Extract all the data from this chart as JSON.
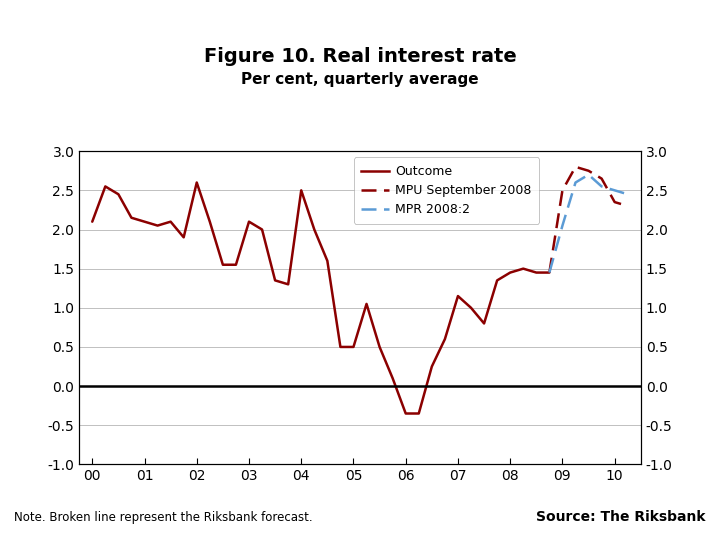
{
  "title": "Figure 10. Real interest rate",
  "subtitle": "Per cent, quarterly average",
  "note": "Note. Broken line represent the Riksbank forecast.",
  "source": "Source: The Riksbank",
  "outcome_x": [
    2000.0,
    2000.25,
    2000.5,
    2000.75,
    2001.0,
    2001.25,
    2001.5,
    2001.75,
    2002.0,
    2002.25,
    2002.5,
    2002.75,
    2003.0,
    2003.25,
    2003.5,
    2003.75,
    2004.0,
    2004.25,
    2004.5,
    2004.75,
    2005.0,
    2005.25,
    2005.5,
    2005.75,
    2006.0,
    2006.25,
    2006.5,
    2006.75,
    2007.0,
    2007.25,
    2007.5,
    2007.75,
    2008.0,
    2008.25,
    2008.5,
    2008.75
  ],
  "outcome_y": [
    2.1,
    2.55,
    2.45,
    2.15,
    2.1,
    2.05,
    2.1,
    1.9,
    2.6,
    2.1,
    1.55,
    1.55,
    2.1,
    2.0,
    1.35,
    1.3,
    2.5,
    2.0,
    1.6,
    0.5,
    0.5,
    1.05,
    0.5,
    0.1,
    -0.35,
    -0.35,
    0.25,
    0.6,
    1.15,
    1.0,
    0.8,
    1.35,
    1.45,
    1.5,
    1.45,
    1.45
  ],
  "mpu_x": [
    2008.75,
    2009.0,
    2009.25,
    2009.5,
    2009.75,
    2010.0,
    2010.25
  ],
  "mpu_y": [
    1.45,
    2.5,
    2.8,
    2.75,
    2.65,
    2.35,
    2.3
  ],
  "mpr_x": [
    2008.75,
    2009.0,
    2009.25,
    2009.5,
    2009.75,
    2010.0,
    2010.25
  ],
  "mpr_y": [
    1.45,
    2.05,
    2.6,
    2.7,
    2.55,
    2.5,
    2.45
  ],
  "outcome_color": "#8B0000",
  "mpu_color": "#8B0000",
  "mpr_color": "#5B9BD5",
  "ylim": [
    -1.0,
    3.0
  ],
  "xlim_left": 1999.75,
  "xlim_right": 2010.5,
  "xticks": [
    2000,
    2001,
    2002,
    2003,
    2004,
    2005,
    2006,
    2007,
    2008,
    2009,
    2010
  ],
  "xticklabels": [
    "00",
    "01",
    "02",
    "03",
    "04",
    "05",
    "06",
    "07",
    "08",
    "09",
    "10"
  ],
  "yticks": [
    -1.0,
    -0.5,
    0.0,
    0.5,
    1.0,
    1.5,
    2.0,
    2.5,
    3.0
  ],
  "bg_color": "#FFFFFF",
  "logo_color": "#1F4E9A",
  "bar_color": "#1F4E9A"
}
